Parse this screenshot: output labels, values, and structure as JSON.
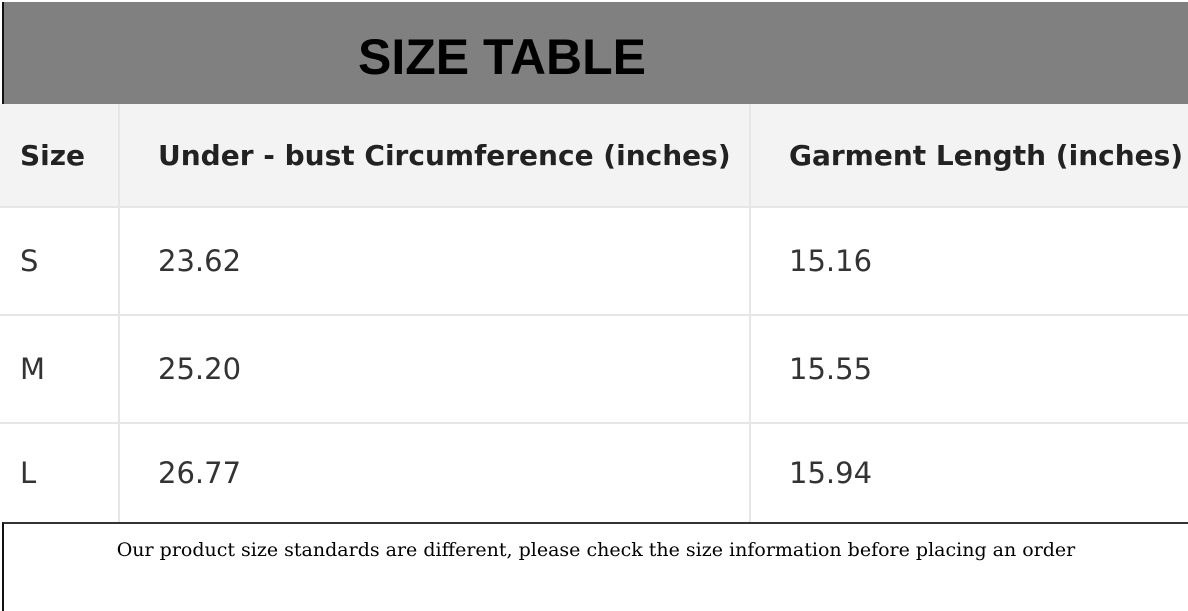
{
  "title": "SIZE TABLE",
  "table": {
    "headers": [
      "Size",
      "Under - bust Circumference (inches)",
      "Garment Length (inches)"
    ],
    "rows": [
      [
        "S",
        "23.62",
        "15.16"
      ],
      [
        "M",
        "25.20",
        "15.55"
      ],
      [
        "L",
        "26.77",
        "15.94"
      ]
    ]
  },
  "note": "Our product size standards are different, please check the size information before placing an order"
}
